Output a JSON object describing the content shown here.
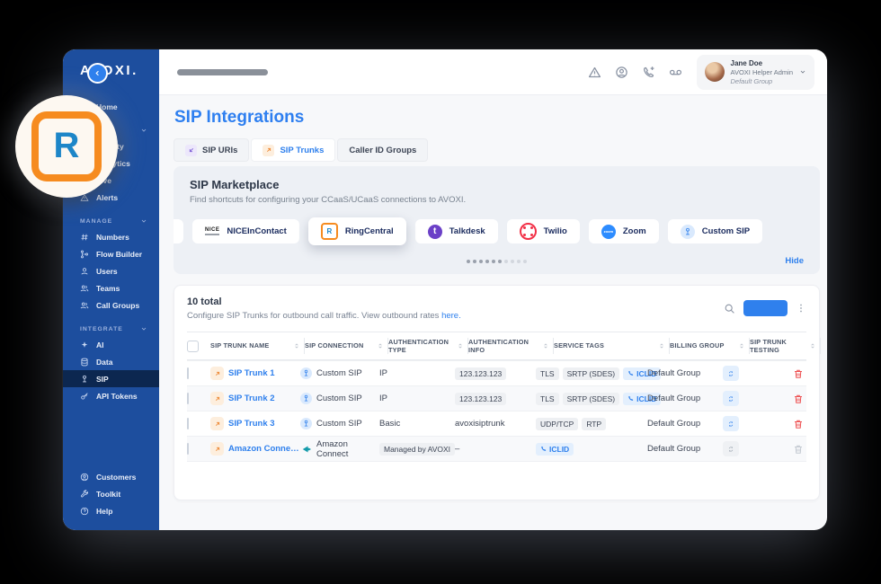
{
  "colors": {
    "sidebar_blue": "#1D4E9E",
    "sidebar_selected": "#0C2750",
    "accent_blue": "#2F80ED",
    "orange": "#ED8936",
    "ringcentral_orange": "#F68B1F",
    "danger_red": "#EE5253",
    "amazon_teal": "#149BAB",
    "talkdesk_purple": "#6B40C7",
    "twilio_red": "#F22F46",
    "zoom_blue": "#2D8CFF"
  },
  "badge": {
    "letter": "R"
  },
  "sidebar": {
    "logo": "AVOXI.",
    "sections": {
      "manage": "MANAGE",
      "integrate": "INTEGRATE"
    },
    "items": [
      {
        "label": "Home"
      },
      {
        "label": "Activity"
      },
      {
        "label": "Analytics"
      },
      {
        "label": "Live"
      },
      {
        "label": "Alerts"
      },
      {
        "label": "Numbers"
      },
      {
        "label": "Flow Builder"
      },
      {
        "label": "Users"
      },
      {
        "label": "Teams"
      },
      {
        "label": "Call Groups"
      },
      {
        "label": "AI"
      },
      {
        "label": "Data"
      },
      {
        "label": "SIP"
      },
      {
        "label": "API Tokens"
      },
      {
        "label": "Customers"
      },
      {
        "label": "Toolkit"
      },
      {
        "label": "Help"
      }
    ]
  },
  "header": {
    "user": {
      "name": "Jane Doe",
      "role": "AVOXI Helper Admin",
      "group": "Default Group"
    }
  },
  "page": {
    "title": "SIP Integrations",
    "tabs": [
      {
        "label": "SIP URIs"
      },
      {
        "label": "SIP Trunks"
      },
      {
        "label": "Caller ID Groups"
      }
    ]
  },
  "marketplace": {
    "title": "SIP Marketplace",
    "subtitle": "Find shortcuts for configuring your CCaaS/UCaaS connections to AVOXI.",
    "hide_label": "Hide",
    "dots_total": 10,
    "dots_active": 6,
    "cards": [
      {
        "label": "NICEInContact",
        "icon_text": "NICE"
      },
      {
        "label": "RingCentral",
        "icon_text": "R"
      },
      {
        "label": "Talkdesk",
        "icon_text": "t"
      },
      {
        "label": "Twilio"
      },
      {
        "label": "Zoom",
        "icon_text": "zoom"
      },
      {
        "label": "Custom SIP"
      }
    ]
  },
  "table": {
    "total": "10 total",
    "description": "Configure SIP Trunks for outbound call traffic. View outbound rates",
    "description_link": "here.",
    "columns": [
      "SIP TRUNK NAME",
      "SIP CONNECTION",
      "AUTHENTICATION TYPE",
      "AUTHENTICATION INFO",
      "SERVICE TAGS",
      "BILLING GROUP",
      "SIP TRUNK TESTING"
    ],
    "rows": [
      {
        "name": "SIP Trunk 1",
        "connection": "Custom SIP",
        "auth_type": "IP",
        "auth_info": "123.123.123",
        "tags": [
          "TLS",
          "SRTP (SDES)",
          "ICLID"
        ],
        "billing_group": "Default Group"
      },
      {
        "name": "SIP Trunk 2",
        "connection": "Custom SIP",
        "auth_type": "IP",
        "auth_info": "123.123.123",
        "tags": [
          "TLS",
          "SRTP (SDES)",
          "ICLID"
        ],
        "billing_group": "Default Group"
      },
      {
        "name": "SIP Trunk 3",
        "connection": "Custom SIP",
        "auth_type": "Basic",
        "auth_info": "avoxisiptrunk",
        "tags": [
          "UDP/TCP",
          "RTP"
        ],
        "billing_group": "Default Group"
      },
      {
        "name": "Amazon Connect Trunk",
        "connection": "Amazon Connect",
        "auth_type": "Managed by AVOXI",
        "auth_info": "–",
        "tags": [
          "ICLID"
        ],
        "billing_group": "Default Group"
      }
    ]
  }
}
